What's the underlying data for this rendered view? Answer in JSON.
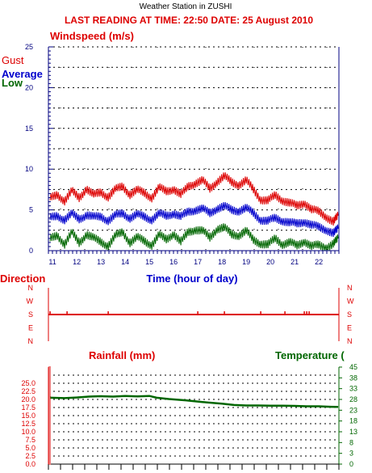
{
  "station_title": "Weather Station in ZUSHI",
  "reading_line": "LAST READING AT TIME: 22:50   DATE: 25 August 2010",
  "colors": {
    "axis": "#000080",
    "red": "#dd0000",
    "blue": "#0000cc",
    "green": "#006600"
  },
  "chart_data": [
    {
      "type": "line",
      "title": "Windspeed (m/s)",
      "xlabel": "Time (hour of day)",
      "ylabel": "",
      "xlim": [
        10.83,
        22.83
      ],
      "ylim": [
        0,
        25
      ],
      "x_ticks": [
        "11",
        "12",
        "13",
        "14",
        "15",
        "16",
        "17",
        "18",
        "19",
        "20",
        "21",
        "22"
      ],
      "y_ticks": [
        "0",
        "5",
        "10",
        "15",
        "20",
        "25"
      ],
      "grid": true,
      "legend": "top-left",
      "series": [
        {
          "name": "Gust",
          "color": "#dd0000",
          "x": [
            10.9,
            11.2,
            11.5,
            11.8,
            12.1,
            12.4,
            12.7,
            13.0,
            13.3,
            13.6,
            13.9,
            14.2,
            14.5,
            14.8,
            15.1,
            15.4,
            15.7,
            16.0,
            16.3,
            16.6,
            16.9,
            17.2,
            17.5,
            17.8,
            18.1,
            18.4,
            18.7,
            19.0,
            19.3,
            19.6,
            19.9,
            20.2,
            20.5,
            20.8,
            21.1,
            21.4,
            21.7,
            22.0,
            22.3,
            22.6,
            22.8
          ],
          "y": [
            6.4,
            6.9,
            6.1,
            7.3,
            6.5,
            7.6,
            6.8,
            7.2,
            6.6,
            7.5,
            7.9,
            6.9,
            7.4,
            7.1,
            6.5,
            7.7,
            7.3,
            7.6,
            6.8,
            7.9,
            8.3,
            8.6,
            7.6,
            8.5,
            9.1,
            8.4,
            8.1,
            8.6,
            7.5,
            6.3,
            6.1,
            6.8,
            6.2,
            5.8,
            5.5,
            5.9,
            5.0,
            4.8,
            4.2,
            3.5,
            4.3
          ]
        },
        {
          "name": "Average",
          "color": "#0000cc",
          "x": [
            10.9,
            11.2,
            11.5,
            11.8,
            12.1,
            12.4,
            12.7,
            13.0,
            13.3,
            13.6,
            13.9,
            14.2,
            14.5,
            14.8,
            15.1,
            15.4,
            15.7,
            16.0,
            16.3,
            16.6,
            16.9,
            17.2,
            17.5,
            17.8,
            18.1,
            18.4,
            18.7,
            19.0,
            19.3,
            19.6,
            19.9,
            20.2,
            20.5,
            20.8,
            21.1,
            21.4,
            21.7,
            22.0,
            22.3,
            22.6,
            22.8
          ],
          "y": [
            4.0,
            4.3,
            3.8,
            4.5,
            3.9,
            4.4,
            4.1,
            4.2,
            3.7,
            4.3,
            4.6,
            4.0,
            4.4,
            4.2,
            3.8,
            4.5,
            4.3,
            4.6,
            4.1,
            4.8,
            5.0,
            5.1,
            4.6,
            5.2,
            5.4,
            5.0,
            4.9,
            5.2,
            4.6,
            3.8,
            3.6,
            4.0,
            3.7,
            3.4,
            3.3,
            3.6,
            3.1,
            2.9,
            2.6,
            2.1,
            2.7
          ]
        },
        {
          "name": "Low",
          "color": "#006600",
          "x": [
            10.9,
            11.2,
            11.5,
            11.8,
            12.1,
            12.4,
            12.7,
            13.0,
            13.3,
            13.6,
            13.9,
            14.2,
            14.5,
            14.8,
            15.1,
            15.4,
            15.7,
            16.0,
            16.3,
            16.6,
            16.9,
            17.2,
            17.5,
            17.8,
            18.1,
            18.4,
            18.7,
            19.0,
            19.3,
            19.6,
            19.9,
            20.2,
            20.5,
            20.8,
            21.1,
            21.4,
            21.7,
            22.0,
            22.3,
            22.6,
            22.8
          ],
          "y": [
            1.4,
            1.9,
            0.8,
            2.2,
            1.0,
            2.0,
            1.5,
            1.1,
            0.6,
            1.8,
            2.3,
            1.0,
            1.6,
            1.2,
            0.7,
            1.9,
            1.4,
            2.1,
            1.0,
            2.3,
            2.6,
            2.4,
            1.6,
            2.7,
            2.8,
            2.0,
            1.9,
            2.4,
            1.3,
            0.9,
            0.7,
            1.5,
            0.8,
            1.0,
            0.6,
            1.2,
            0.5,
            0.7,
            0.4,
            0.8,
            1.5
          ]
        }
      ]
    },
    {
      "type": "scatter",
      "title": "Direction",
      "xlim": [
        10.83,
        22.83
      ],
      "y_ticks": [
        "N",
        "W",
        "S",
        "E",
        "N"
      ],
      "series": [
        {
          "name": "Direction",
          "color": "#dd0000",
          "x": [
            10.9,
            11.6,
            13.3,
            17.0,
            18.1,
            19.6,
            20.6,
            21.4,
            21.5,
            21.6
          ],
          "y": [
            "S",
            "S",
            "S",
            "S",
            "S",
            "S",
            "S",
            "S",
            "S",
            "S"
          ]
        }
      ]
    },
    {
      "type": "line",
      "title": "Rainfall (mm)",
      "y2label": "Temperature (",
      "xlim": [
        10.83,
        22.83
      ],
      "ylim": [
        0,
        30
      ],
      "y_ticks": [
        "0.0",
        "2.5",
        "5.0",
        "7.5",
        "10.0",
        "12.5",
        "15.0",
        "17.5",
        "20.0",
        "22.5",
        "25.0"
      ],
      "y2lim": [
        0,
        45
      ],
      "y2_ticks": [
        "0",
        "3",
        "8",
        "13",
        "18",
        "23",
        "28",
        "33",
        "38",
        "45"
      ],
      "grid": true,
      "series": [
        {
          "name": "Temperature",
          "color": "#006600",
          "x": [
            10.9,
            11.5,
            12.0,
            12.5,
            13.0,
            13.5,
            14.0,
            14.5,
            15.0,
            15.3,
            15.8,
            16.5,
            17.2,
            18.0,
            18.5,
            19.0,
            19.5,
            20.0,
            20.5,
            21.0,
            21.5,
            22.0,
            22.5,
            22.8
          ],
          "y": [
            30.8,
            30.6,
            30.9,
            31.3,
            31.5,
            31.3,
            31.6,
            31.4,
            31.6,
            30.8,
            30.2,
            29.6,
            28.8,
            28.0,
            27.4,
            27.2,
            27.2,
            27.1,
            27.1,
            27.0,
            26.8,
            26.8,
            26.6,
            26.5
          ]
        }
      ]
    }
  ]
}
